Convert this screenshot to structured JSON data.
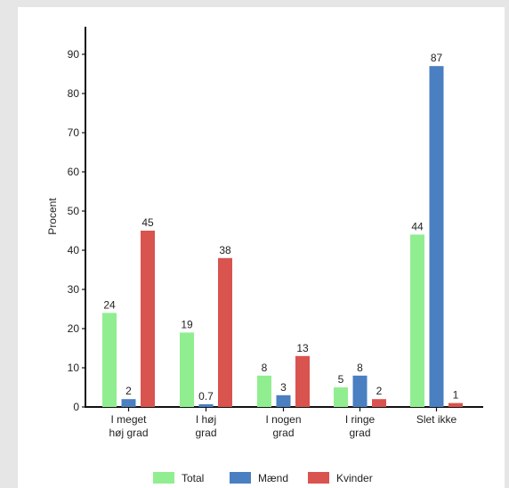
{
  "chart_data": {
    "type": "bar",
    "title": "",
    "xlabel": "",
    "ylabel": "Procent",
    "ylim": [
      0,
      95
    ],
    "yticks": [
      0,
      10,
      20,
      30,
      40,
      50,
      60,
      70,
      80,
      90
    ],
    "grid": false,
    "legend_position": "bottom",
    "categories": [
      [
        "I meget",
        "høj grad"
      ],
      [
        "I høj",
        "grad"
      ],
      [
        "I nogen",
        "grad"
      ],
      [
        "I ringe",
        "grad"
      ],
      [
        "Slet ikke"
      ]
    ],
    "series": [
      {
        "name": "Total",
        "color": "#90ee90",
        "values": [
          24,
          19,
          8,
          5,
          44
        ],
        "labels": [
          "24",
          "19",
          "8",
          "5",
          "44"
        ]
      },
      {
        "name": "Mænd",
        "color": "#4a7fc1",
        "values": [
          2,
          0.7,
          3,
          8,
          87
        ],
        "labels": [
          "2",
          "0.7",
          "3",
          "8",
          "87"
        ]
      },
      {
        "name": "Kvinder",
        "color": "#d9534f",
        "values": [
          45,
          38,
          13,
          2,
          1
        ],
        "labels": [
          "45",
          "38",
          "13",
          "2",
          "1"
        ]
      }
    ]
  }
}
